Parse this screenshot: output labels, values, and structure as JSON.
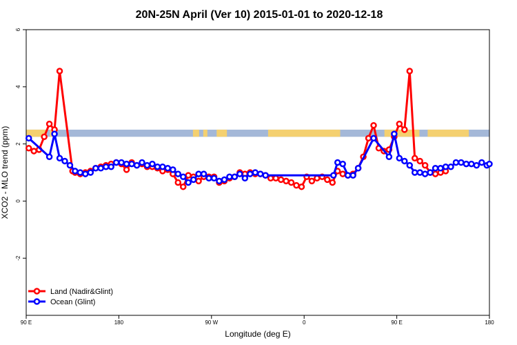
{
  "chart_data": {
    "type": "line",
    "title": "20N-25N April (Ver 10)   2015-01-01 to 2020-12-18",
    "xlabel": "Longitude (deg E)",
    "ylabel": "XCO2 - MLO trend (ppm)",
    "xlim": [
      90,
      540
    ],
    "ylim": [
      -4,
      6
    ],
    "x_ticks": [
      {
        "value": 90,
        "label": "90 E"
      },
      {
        "value": 180,
        "label": "180"
      },
      {
        "value": 270,
        "label": "90 W"
      },
      {
        "value": 360,
        "label": "0"
      },
      {
        "value": 450,
        "label": "90 E"
      },
      {
        "value": 540,
        "label": "180"
      }
    ],
    "y_ticks": [
      {
        "value": -2,
        "label": "-2"
      },
      {
        "value": 0,
        "label": "0"
      },
      {
        "value": 2,
        "label": "2"
      },
      {
        "value": 4,
        "label": "4"
      },
      {
        "value": 6,
        "label": "6"
      }
    ],
    "grid": false,
    "legend_position": "bottom-left",
    "band": {
      "y_min": 2.25,
      "y_max": 2.5,
      "ocean_color": "#a4b8d8",
      "land_color": "#f4d070"
    },
    "band_land_segments": [
      [
        90,
        110
      ],
      [
        113,
        117
      ],
      [
        252,
        258
      ],
      [
        262,
        266
      ],
      [
        275,
        285
      ],
      [
        325,
        395
      ],
      [
        438,
        472
      ],
      [
        480,
        520
      ]
    ],
    "series": [
      {
        "name": "Land (Nadir&Glint)",
        "color": "#ff0000",
        "x": [
          92.5,
          97.5,
          102.5,
          107.5,
          112.5,
          117.5,
          122.5,
          135,
          137.5,
          142.5,
          147.5,
          152.5,
          157.5,
          162.5,
          167.5,
          172.5,
          177.5,
          182.5,
          187.5,
          192.5,
          197.5,
          202.5,
          207.5,
          212.5,
          217.5,
          222.5,
          227.5,
          232.5,
          237.5,
          242.5,
          247.5,
          252.5,
          257.5,
          262.5,
          267.5,
          272.5,
          277.5,
          282.5,
          287.5,
          292.5,
          297.5,
          302.5,
          307.5,
          312.5,
          317.5,
          322.5,
          327.5,
          332.5,
          337.5,
          342.5,
          347.5,
          352.5,
          357.5,
          362.5,
          367.5,
          372.5,
          377.5,
          382.5,
          387.5,
          392.5,
          397.5,
          402.5,
          407.5,
          412.5,
          417.5,
          422.5,
          427.5,
          432.5,
          437.5,
          442.5,
          447.5,
          452.5,
          457.5,
          462.5,
          467.5,
          472.5,
          477.5,
          482.5,
          487.5,
          492.5,
          497.5
        ],
        "y": [
          1.85,
          1.75,
          1.8,
          2.25,
          2.7,
          2.5,
          4.55,
          1.05,
          1.0,
          0.95,
          1.0,
          1.05,
          1.15,
          1.2,
          1.25,
          1.3,
          1.35,
          1.3,
          1.1,
          1.35,
          1.25,
          1.3,
          1.2,
          1.2,
          1.15,
          1.05,
          1.1,
          0.95,
          0.65,
          0.5,
          0.9,
          0.85,
          0.7,
          0.85,
          0.85,
          0.85,
          0.65,
          0.7,
          0.8,
          0.85,
          1.0,
          0.95,
          1.0,
          0.95,
          0.95,
          0.9,
          0.8,
          0.8,
          0.75,
          0.7,
          0.65,
          0.55,
          0.5,
          0.85,
          0.7,
          0.8,
          0.85,
          0.75,
          0.65,
          1.05,
          0.95,
          0.9,
          0.95,
          1.15,
          1.55,
          2.2,
          2.65,
          1.85,
          1.75,
          1.8,
          2.25,
          2.7,
          2.5,
          4.55,
          1.5,
          1.4,
          1.25,
          1.0,
          0.95,
          1.0,
          1.05
        ]
      },
      {
        "name": "Ocean (Glint)",
        "color": "#0000ff",
        "x": [
          92.5,
          112.5,
          117.5,
          122.5,
          127.5,
          132.5,
          137.5,
          142.5,
          147.5,
          152.5,
          157.5,
          162.5,
          167.5,
          172.5,
          177.5,
          182.5,
          187.5,
          192.5,
          197.5,
          202.5,
          207.5,
          212.5,
          217.5,
          222.5,
          227.5,
          232.5,
          237.5,
          242.5,
          247.5,
          252.5,
          257.5,
          262.5,
          267.5,
          272.5,
          277.5,
          282.5,
          287.5,
          292.5,
          297.5,
          302.5,
          307.5,
          312.5,
          317.5,
          322.5,
          388.5,
          392.5,
          397.5,
          402.5,
          407.5,
          412.5,
          427.5,
          442.5,
          447.5,
          452.5,
          457.5,
          462.5,
          467.5,
          472.5,
          477.5,
          482.5,
          487.5,
          492.5,
          497.5,
          502.5,
          507.5,
          512.5,
          517.5,
          522.5,
          527.5,
          532.5,
          537.5,
          540
        ],
        "y": [
          2.2,
          1.55,
          2.35,
          1.5,
          1.4,
          1.25,
          1.05,
          1.0,
          0.95,
          1.0,
          1.15,
          1.15,
          1.2,
          1.2,
          1.35,
          1.35,
          1.3,
          1.3,
          1.25,
          1.35,
          1.25,
          1.3,
          1.2,
          1.2,
          1.15,
          1.1,
          0.95,
          0.85,
          0.65,
          0.75,
          0.95,
          0.95,
          0.8,
          0.8,
          0.7,
          0.75,
          0.85,
          0.85,
          0.95,
          0.8,
          0.95,
          1.0,
          0.95,
          0.9,
          0.9,
          1.35,
          1.3,
          0.9,
          0.9,
          1.15,
          2.2,
          1.55,
          2.35,
          1.5,
          1.4,
          1.25,
          1.0,
          1.0,
          0.95,
          1.0,
          1.15,
          1.15,
          1.2,
          1.2,
          1.35,
          1.35,
          1.3,
          1.3,
          1.25,
          1.35,
          1.25,
          1.3
        ]
      }
    ]
  }
}
